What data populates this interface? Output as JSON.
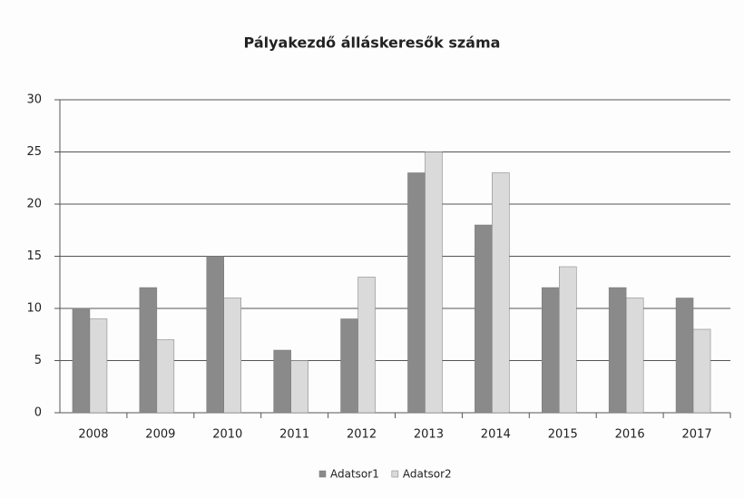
{
  "chart_data": {
    "type": "bar",
    "title": "Pályakezdő álláskeresők száma",
    "categories": [
      "2008",
      "2009",
      "2010",
      "2011",
      "2012",
      "2013",
      "2014",
      "2015",
      "2016",
      "2017"
    ],
    "series": [
      {
        "name": "Adatsor1",
        "color": "#8a8a8a",
        "values": [
          10,
          12,
          15,
          6,
          9,
          23,
          18,
          12,
          12,
          11
        ]
      },
      {
        "name": "Adatsor2",
        "color": "#dadada",
        "values": [
          9,
          7,
          11,
          5,
          13,
          25,
          23,
          14,
          11,
          8
        ]
      }
    ],
    "ylim": [
      0,
      30
    ],
    "yticks": [
      0,
      5,
      10,
      15,
      20,
      25,
      30
    ],
    "grid": true,
    "legend": "bottom"
  }
}
